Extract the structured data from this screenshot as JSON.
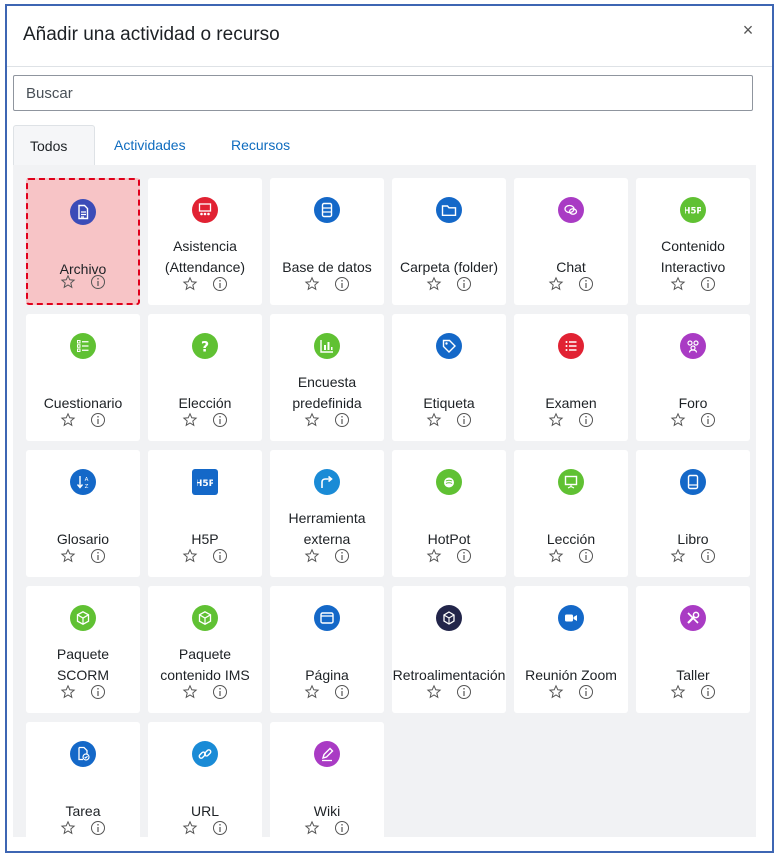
{
  "modal": {
    "title": "Añadir una actividad o recurso",
    "close_symbol": "×"
  },
  "search": {
    "placeholder": "Buscar",
    "value": ""
  },
  "tabs": [
    {
      "label": "Todos",
      "active": true
    },
    {
      "label": "Actividades",
      "active": false
    },
    {
      "label": "Recursos",
      "active": false
    }
  ],
  "modules": [
    {
      "name": "Archivo",
      "icon": "file-icon",
      "color": "#3b4cb8",
      "selected": true
    },
    {
      "name": "Asistencia (Attendance)",
      "icon": "attendance-icon",
      "color": "#e12233"
    },
    {
      "name": "Base de datos",
      "icon": "database-icon",
      "color": "#1468c8"
    },
    {
      "name": "Carpeta (folder)",
      "icon": "folder-icon",
      "color": "#1468c8"
    },
    {
      "name": "Chat",
      "icon": "chat-icon",
      "color": "#a93bc4"
    },
    {
      "name": "Contenido Interactivo",
      "icon": "h5p-icon",
      "color": "#60c133"
    },
    {
      "name": "Cuestionario",
      "icon": "quiz-icon",
      "color": "#60c133"
    },
    {
      "name": "Elección",
      "icon": "question-icon",
      "color": "#60c133"
    },
    {
      "name": "Encuesta predefinida",
      "icon": "chart-icon",
      "color": "#60c133"
    },
    {
      "name": "Etiqueta",
      "icon": "tag-icon",
      "color": "#1468c8"
    },
    {
      "name": "Examen",
      "icon": "list-icon",
      "color": "#e12233"
    },
    {
      "name": "Foro",
      "icon": "forum-icon",
      "color": "#a93bc4"
    },
    {
      "name": "Glosario",
      "icon": "sort-az-icon",
      "color": "#1468c8"
    },
    {
      "name": "H5P",
      "icon": "h5p-square-icon",
      "color": "#1468c8"
    },
    {
      "name": "Herramienta externa",
      "icon": "external-icon",
      "color": "#1a8bd6"
    },
    {
      "name": "HotPot",
      "icon": "hotpot-icon",
      "color": "#60c133"
    },
    {
      "name": "Lección",
      "icon": "presentation-icon",
      "color": "#60c133"
    },
    {
      "name": "Libro",
      "icon": "book-icon",
      "color": "#1468c8"
    },
    {
      "name": "Paquete SCORM",
      "icon": "package-icon",
      "color": "#60c133"
    },
    {
      "name": "Paquete contenido IMS",
      "icon": "package-icon",
      "color": "#60c133"
    },
    {
      "name": "Página",
      "icon": "window-icon",
      "color": "#1468c8"
    },
    {
      "name": "Retroalimentación",
      "icon": "feedback-icon",
      "color": "#22254a"
    },
    {
      "name": "Reunión Zoom",
      "icon": "video-icon",
      "color": "#1468c8"
    },
    {
      "name": "Taller",
      "icon": "tools-icon",
      "color": "#a93bc4"
    },
    {
      "name": "Tarea",
      "icon": "assignment-icon",
      "color": "#1468c8"
    },
    {
      "name": "URL",
      "icon": "link-icon",
      "color": "#1a8bd6"
    },
    {
      "name": "Wiki",
      "icon": "pen-icon",
      "color": "#a93bc4"
    }
  ],
  "card_actions": {
    "star_icon": "star-icon",
    "info_icon": "info-icon"
  }
}
